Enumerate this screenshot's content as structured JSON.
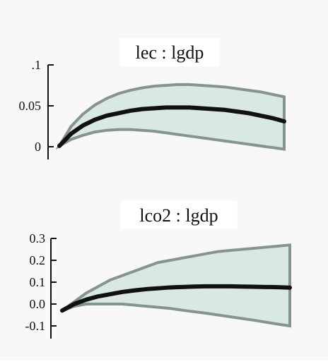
{
  "chart_data": [
    {
      "type": "area",
      "title": "lec : lgdp",
      "xlabel": "",
      "ylabel": "",
      "ylim": [
        0,
        0.1
      ],
      "yticks": [
        ".1",
        "0.05",
        "0"
      ],
      "grid": false,
      "x": [
        1,
        2,
        3,
        4,
        5,
        6,
        7,
        8,
        9,
        10,
        11,
        12,
        13,
        14,
        15,
        16,
        17,
        18,
        19,
        20
      ],
      "series": [
        {
          "values": [
            0.001,
            0.016,
            0.026,
            0.033,
            0.038,
            0.041,
            0.044,
            0.046,
            0.047,
            0.048,
            0.048,
            0.048,
            0.047,
            0.046,
            0.045,
            0.043,
            0.041,
            0.038,
            0.035,
            0.031
          ]
        }
      ],
      "band": {
        "lower": [
          0.001,
          0.009,
          0.014,
          0.018,
          0.02,
          0.021,
          0.021,
          0.02,
          0.019,
          0.017,
          0.015,
          0.013,
          0.011,
          0.009,
          0.007,
          0.005,
          0.003,
          0.001,
          -0.001,
          -0.003
        ],
        "upper": [
          0.001,
          0.025,
          0.04,
          0.051,
          0.059,
          0.065,
          0.069,
          0.072,
          0.074,
          0.075,
          0.076,
          0.076,
          0.075,
          0.074,
          0.073,
          0.071,
          0.069,
          0.067,
          0.064,
          0.061
        ]
      }
    },
    {
      "type": "area",
      "title": "lco2 : lgdp",
      "xlabel": "",
      "ylabel": "",
      "ylim": [
        -0.1,
        0.3
      ],
      "yticks": [
        "0.3",
        "0.2",
        "0.1",
        "0.0",
        "-0.1"
      ],
      "grid": false,
      "x": [
        1,
        2,
        3,
        4,
        5,
        6,
        7,
        8,
        9,
        10,
        11,
        12,
        13,
        14,
        15,
        16,
        17,
        18,
        19,
        20
      ],
      "series": [
        {
          "values": [
            -0.03,
            0.0,
            0.02,
            0.035,
            0.045,
            0.055,
            0.062,
            0.068,
            0.072,
            0.076,
            0.078,
            0.08,
            0.081,
            0.081,
            0.081,
            0.08,
            0.079,
            0.078,
            0.077,
            0.075
          ]
        }
      ],
      "band": {
        "lower": [
          -0.03,
          -0.01,
          0.0,
          0.0,
          0.0,
          0.0,
          -0.005,
          -0.01,
          -0.015,
          -0.02,
          -0.028,
          -0.035,
          -0.042,
          -0.05,
          -0.058,
          -0.066,
          -0.074,
          -0.083,
          -0.092,
          -0.1
        ],
        "upper": [
          -0.03,
          0.01,
          0.05,
          0.08,
          0.11,
          0.13,
          0.15,
          0.17,
          0.19,
          0.2,
          0.21,
          0.22,
          0.23,
          0.24,
          0.245,
          0.25,
          0.255,
          0.26,
          0.265,
          0.27
        ]
      }
    }
  ]
}
